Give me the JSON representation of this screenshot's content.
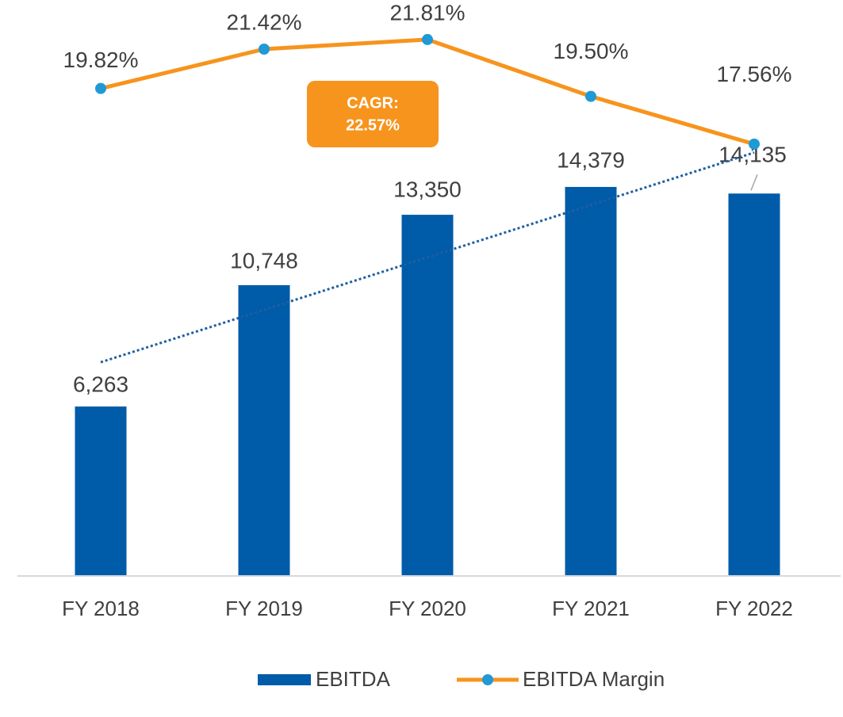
{
  "chart_data": {
    "type": "bar",
    "categories": [
      "FY 2018",
      "FY 2019",
      "FY 2020",
      "FY 2021",
      "FY 2022"
    ],
    "ylim": [
      0,
      20000
    ],
    "y2lim": [
      0,
      22
    ],
    "trendline": "linear",
    "trendline_color": "#1f5fa0",
    "series": [
      {
        "name": "EBITDA",
        "type": "bar",
        "color": "#005ba8",
        "values": [
          6263,
          10748,
          13350,
          14379,
          14135
        ],
        "value_labels": [
          "6,263",
          "10,748",
          "13,350",
          "14,379",
          "14,135"
        ]
      },
      {
        "name": "EBITDA Margin",
        "type": "line",
        "axis": "y2",
        "color": "#f7941d",
        "marker_color": "#1f9ad6",
        "values": [
          19.82,
          21.42,
          21.81,
          19.5,
          17.56
        ],
        "value_labels": [
          "19.82%",
          "21.42%",
          "21.81%",
          "19.50%",
          "17.56%"
        ]
      }
    ],
    "annotation": {
      "lines": [
        "CAGR:",
        "22.57%"
      ],
      "color": "#f7941d"
    },
    "legend": "bottom"
  }
}
